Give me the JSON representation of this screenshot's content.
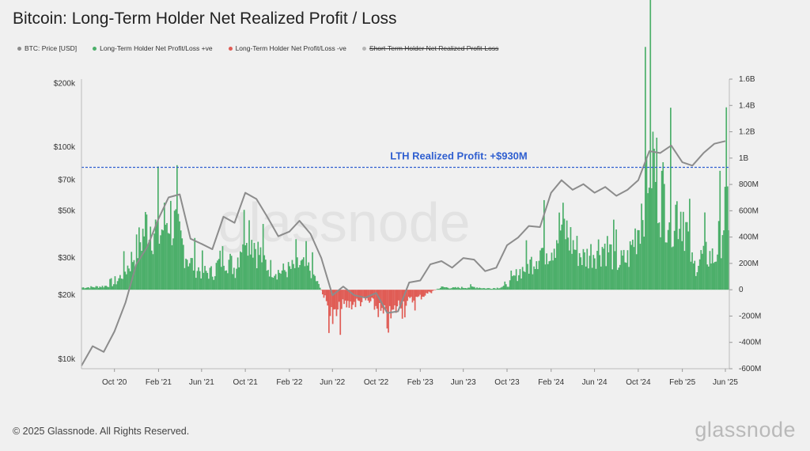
{
  "chart_data": {
    "type": "area",
    "title": "Bitcoin: Long-Term Holder Net Realized Profit / Loss",
    "legend": [
      {
        "name": "BTC: Price [USD]",
        "color": "#8c8c8c",
        "struck": false
      },
      {
        "name": "Long-Term Holder Net Profit/Loss +ve",
        "color": "#4caf6a",
        "struck": false
      },
      {
        "name": "Long-Term Holder Net Profit/Loss -ve",
        "color": "#e05c55",
        "struck": false
      },
      {
        "name": "Short-Term Holder Net Realized Profit-Loss",
        "color": "#b5b5b5",
        "struck": true
      }
    ],
    "legend_position": "top-left",
    "x_ticks": [
      "Oct '20",
      "Feb '21",
      "Jun '21",
      "Oct '21",
      "Feb '22",
      "Jun '22",
      "Oct '22",
      "Feb '23",
      "Jun '23",
      "Oct '23",
      "Feb '24",
      "Jun '24",
      "Oct '24",
      "Feb '25",
      "Jun '25"
    ],
    "x_range": [
      "2020-07",
      "2025-06"
    ],
    "y_left": {
      "scale": "log",
      "ticks": [
        {
          "label": "$10k",
          "value": 10000
        },
        {
          "label": "$20k",
          "value": 20000
        },
        {
          "label": "$30k",
          "value": 30000
        },
        {
          "label": "$50k",
          "value": 50000
        },
        {
          "label": "$70k",
          "value": 70000
        },
        {
          "label": "$100k",
          "value": 100000
        },
        {
          "label": "$200k",
          "value": 200000
        }
      ]
    },
    "y_right": {
      "scale": "linear",
      "range": [
        -600000000,
        1600000000
      ],
      "ticks": [
        {
          "label": "1.6B",
          "value": 1600000000
        },
        {
          "label": "1.4B",
          "value": 1400000000
        },
        {
          "label": "1.2B",
          "value": 1200000000
        },
        {
          "label": "1B",
          "value": 1000000000
        },
        {
          "label": "800M",
          "value": 800000000
        },
        {
          "label": "600M",
          "value": 600000000
        },
        {
          "label": "400M",
          "value": 400000000
        },
        {
          "label": "200M",
          "value": 200000000
        },
        {
          "label": "0",
          "value": 0
        },
        {
          "label": "-200M",
          "value": -200000000
        },
        {
          "label": "-400M",
          "value": -400000000
        },
        {
          "label": "-600M",
          "value": -600000000
        }
      ]
    },
    "annotation": {
      "text": "LTH Realized Profit: +$930M",
      "value": 930000000
    },
    "btc_price": {
      "x": [
        "2020-07",
        "2020-08",
        "2020-09",
        "2020-10",
        "2020-11",
        "2020-12",
        "2021-01",
        "2021-02",
        "2021-03",
        "2021-04",
        "2021-05",
        "2021-06",
        "2021-07",
        "2021-08",
        "2021-09",
        "2021-10",
        "2021-11",
        "2021-12",
        "2022-01",
        "2022-02",
        "2022-03",
        "2022-04",
        "2022-05",
        "2022-06",
        "2022-07",
        "2022-08",
        "2022-09",
        "2022-10",
        "2022-11",
        "2022-12",
        "2023-01",
        "2023-02",
        "2023-03",
        "2023-04",
        "2023-05",
        "2023-06",
        "2023-07",
        "2023-08",
        "2023-09",
        "2023-10",
        "2023-11",
        "2023-12",
        "2024-01",
        "2024-02",
        "2024-03",
        "2024-04",
        "2024-05",
        "2024-06",
        "2024-07",
        "2024-08",
        "2024-09",
        "2024-10",
        "2024-11",
        "2024-12",
        "2025-01",
        "2025-02",
        "2025-03",
        "2025-04",
        "2025-05",
        "2025-06"
      ],
      "y": [
        9300,
        11500,
        10800,
        13500,
        18500,
        28000,
        34000,
        46000,
        58000,
        60000,
        37000,
        35000,
        33000,
        47000,
        44000,
        61000,
        57000,
        47000,
        38000,
        40000,
        45000,
        39000,
        30000,
        20000,
        22000,
        20000,
        19500,
        20500,
        16500,
        16800,
        23000,
        23500,
        28000,
        29000,
        27000,
        30000,
        29500,
        26000,
        27000,
        34500,
        37500,
        42500,
        42000,
        61000,
        70000,
        63000,
        67000,
        61000,
        65000,
        59000,
        63000,
        70000,
        96000,
        94000,
        102000,
        85000,
        82000,
        94000,
        104000,
        107000
      ]
    },
    "lth_net_profit_loss": {
      "x": [
        "2020-07",
        "2020-08",
        "2020-09",
        "2020-10",
        "2020-11",
        "2020-12",
        "2021-01",
        "2021-02",
        "2021-03",
        "2021-04",
        "2021-05",
        "2021-06",
        "2021-07",
        "2021-08",
        "2021-09",
        "2021-10",
        "2021-11",
        "2021-12",
        "2022-01",
        "2022-02",
        "2022-03",
        "2022-04",
        "2022-05",
        "2022-06",
        "2022-07",
        "2022-08",
        "2022-09",
        "2022-10",
        "2022-11",
        "2022-12",
        "2023-01",
        "2023-02",
        "2023-03",
        "2023-04",
        "2023-05",
        "2023-06",
        "2023-07",
        "2023-08",
        "2023-09",
        "2023-10",
        "2023-11",
        "2023-12",
        "2024-01",
        "2024-02",
        "2024-03",
        "2024-04",
        "2024-05",
        "2024-06",
        "2024-07",
        "2024-08",
        "2024-09",
        "2024-10",
        "2024-11",
        "2024-12",
        "2025-01",
        "2025-02",
        "2025-03",
        "2025-04",
        "2025-05",
        "2025-06"
      ],
      "y": [
        25000000,
        30000000,
        40000000,
        70000000,
        230000000,
        450000000,
        780000000,
        620000000,
        850000000,
        550000000,
        300000000,
        200000000,
        190000000,
        400000000,
        230000000,
        800000000,
        450000000,
        260000000,
        200000000,
        230000000,
        280000000,
        220000000,
        -20000000,
        -340000000,
        -180000000,
        -150000000,
        -120000000,
        -200000000,
        -370000000,
        -160000000,
        -130000000,
        -80000000,
        -20000000,
        30000000,
        20000000,
        25000000,
        30000000,
        15000000,
        20000000,
        50000000,
        200000000,
        280000000,
        450000000,
        500000000,
        730000000,
        500000000,
        350000000,
        450000000,
        500000000,
        300000000,
        350000000,
        750000000,
        1600000000,
        1100000000,
        900000000,
        900000000,
        250000000,
        400000000,
        350000000,
        930000000
      ]
    }
  }
}
